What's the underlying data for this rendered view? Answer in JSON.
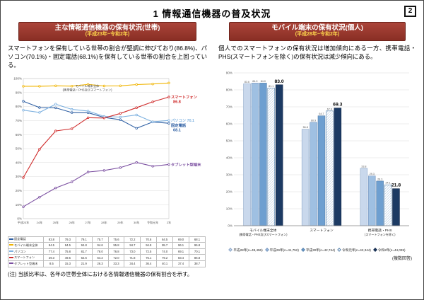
{
  "page": {
    "title": "1 情報通信機器の普及状況",
    "page_number": "2",
    "note": "(注) 当該比率は、各年の世帯全体における各情報通信機器の保有割合を示す。"
  },
  "household": {
    "header": "主な情報通信機器の保有状況(世帯)",
    "header_sub": "(平成23年~令和2年)",
    "body": "スマートフォンを保有している世帯の割合が堅調に伸びており(86.8%)、パソコン(70.1%)・固定電話(68.1%)を保有している世帯の割合を上回っている。"
  },
  "mobile": {
    "header": "モバイル端末の保有状況(個人)",
    "header_sub": "(平成28年~令和2年)",
    "body": "個人でのスマートフォンの保有状況は増加傾向にある一方、携帯電話・PHS(スマートフォンを除く)の保有状況は減少傾向にある。",
    "multi_answer_note": "(複数回答)"
  },
  "chart_data": [
    {
      "type": "line",
      "title": "主な情報通信機器の保有状況(世帯)",
      "x": [
        "平成23年",
        "24年",
        "25年",
        "26年",
        "27年",
        "28年",
        "29年",
        "30年",
        "令和元年",
        "2年"
      ],
      "ylim": [
        0,
        100
      ],
      "ytick_step": 10,
      "grid": true,
      "annotation": [
        "モバイル端末全体",
        "(携帯電話・PHS及びスマートフォン)"
      ],
      "series": [
        {
          "name": "固定電話",
          "color": "#2e5fa3",
          "values": [
            83.8,
            79.3,
            79.1,
            75.7,
            75.6,
            72.2,
            70.6,
            64.5,
            69.0,
            68.1
          ],
          "end_label": "固定電話",
          "end_value": "68.1"
        },
        {
          "name": "モバイル端末全体",
          "color": "#f0b400",
          "values": [
            94.5,
            94.5,
            94.8,
            94.6,
            95.8,
            94.7,
            94.8,
            95.7,
            96.1,
            96.8
          ]
        },
        {
          "name": "パソコン",
          "color": "#7fb2e0",
          "values": [
            77.4,
            75.8,
            81.7,
            78.0,
            76.8,
            73.0,
            72.5,
            74.0,
            69.1,
            70.1
          ],
          "end_label": "パソコン 70.1"
        },
        {
          "name": "スマートフォン",
          "color": "#cf2b2b",
          "values": [
            29.3,
            49.5,
            62.6,
            64.2,
            72.0,
            71.8,
            75.1,
            79.2,
            83.4,
            86.8
          ],
          "end_label": "スマートフォン",
          "end_value": "86.8"
        },
        {
          "name": "タブレット型端末",
          "color": "#7a4ea0",
          "values": [
            8.5,
            15.3,
            21.9,
            26.3,
            33.3,
            34.4,
            36.4,
            40.1,
            37.4,
            38.7
          ],
          "end_label": "タブレット型端末"
        }
      ]
    },
    {
      "type": "bar",
      "title": "モバイル端末の保有状況(個人)",
      "ylim": [
        0,
        90
      ],
      "ytick_step": 10,
      "grid": true,
      "legend_position": "bottom",
      "groups": [
        {
          "label": "モバイル端末全体",
          "label2": "(携帯電話・PHS及びスマートフォン)",
          "values": [
            83.6,
            84.0,
            84.0,
            81.1,
            83.0
          ]
        },
        {
          "label": "スマートフォン",
          "label2": "",
          "values": [
            56.8,
            60.9,
            64.7,
            67.6,
            69.3
          ]
        },
        {
          "label": "携帯電話・PHS",
          "label2": "(スマートフォンを除く)",
          "values": [
            33.8,
            29.3,
            26.3,
            24.1,
            21.8
          ]
        }
      ],
      "series_labels": [
        "平成28年(n=49,496)",
        "平成29年(n=41,752)",
        "平成30年(n=42,744)",
        "令和元年(n=42,344)",
        "令和2年(n=44,035)"
      ],
      "bar_fills": [
        "#c9d8ec",
        "#9fc0e2",
        "#6e9fd0",
        "hatch",
        "#1c3a63"
      ],
      "bar_borders": [
        "#8aa6c8",
        "#7795bd",
        "#5580ab",
        "#5580ab",
        "#13294a"
      ]
    }
  ]
}
